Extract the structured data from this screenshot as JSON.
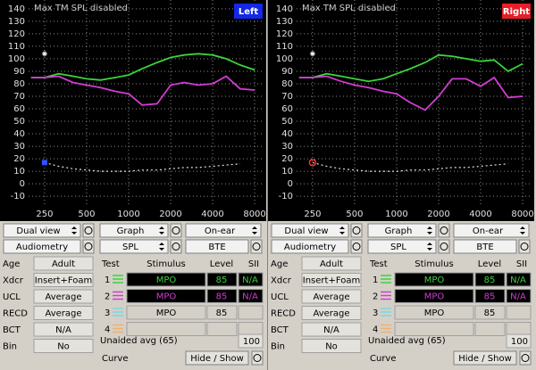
{
  "chart_data": [
    {
      "type": "line",
      "annotation": "Max TM SPL disabled",
      "ear_label": "Left",
      "ear_color": "#1428e6",
      "x": [
        200,
        250,
        315,
        400,
        500,
        630,
        800,
        1000,
        1250,
        1600,
        2000,
        2500,
        3150,
        4000,
        5000,
        6300,
        8000
      ],
      "xlim": [
        192,
        9400
      ],
      "ylim": [
        -17,
        147
      ],
      "log_x": true,
      "grid": true,
      "xticks": [
        250,
        500,
        1000,
        2000,
        4000,
        8000
      ],
      "yticks": [
        -10,
        0,
        10,
        20,
        30,
        40,
        50,
        60,
        70,
        80,
        90,
        100,
        110,
        120,
        130,
        140
      ],
      "series": [
        {
          "color": "#3cd23c",
          "line": "solid",
          "values": [
            85,
            85,
            88,
            86,
            84,
            83,
            85,
            87,
            92,
            97,
            101,
            103,
            104,
            103,
            100,
            95,
            91
          ]
        },
        {
          "color": "#d23cd2",
          "line": "solid",
          "values": [
            85,
            85,
            86,
            81,
            79,
            77,
            74,
            72,
            63,
            64,
            79,
            81,
            79,
            80,
            86,
            76,
            75
          ]
        },
        {
          "color": "#e0e0e0",
          "line": "dotted",
          "values": [
            null,
            17,
            14,
            12,
            11,
            10,
            10,
            10,
            11,
            11,
            12,
            13,
            13,
            14,
            15,
            16,
            null
          ]
        },
        {
          "color": "#ffffff",
          "line": "none",
          "marker": "star",
          "x": [
            250
          ],
          "values": [
            104
          ]
        },
        {
          "color": "#3050ff",
          "line": "none",
          "marker": "square",
          "x": [
            250
          ],
          "values": [
            17
          ]
        }
      ]
    },
    {
      "type": "line",
      "annotation": "Max TM SPL disabled",
      "ear_label": "Right",
      "ear_color": "#e61e28",
      "x": [
        200,
        250,
        315,
        400,
        500,
        630,
        800,
        1000,
        1250,
        1600,
        2000,
        2500,
        3150,
        4000,
        5000,
        6300,
        8000
      ],
      "xlim": [
        192,
        9400
      ],
      "ylim": [
        -17,
        147
      ],
      "log_x": true,
      "grid": true,
      "xticks": [
        250,
        500,
        1000,
        2000,
        4000,
        8000
      ],
      "yticks": [
        -10,
        0,
        10,
        20,
        30,
        40,
        50,
        60,
        70,
        80,
        90,
        100,
        110,
        120,
        130,
        140
      ],
      "series": [
        {
          "color": "#3cd23c",
          "line": "solid",
          "values": [
            85,
            85,
            88,
            86,
            84,
            82,
            84,
            88,
            92,
            97,
            103,
            102,
            100,
            98,
            99,
            90,
            96
          ]
        },
        {
          "color": "#d23cd2",
          "line": "solid",
          "values": [
            85,
            85,
            86,
            82,
            79,
            77,
            74,
            72,
            65,
            59,
            70,
            84,
            84,
            78,
            85,
            69,
            70
          ]
        },
        {
          "color": "#e0e0e0",
          "line": "dotted",
          "values": [
            null,
            17,
            14,
            12,
            11,
            10,
            10,
            10,
            11,
            11,
            12,
            13,
            13,
            14,
            15,
            16,
            null
          ]
        },
        {
          "color": "#ffffff",
          "line": "none",
          "marker": "star",
          "x": [
            250
          ],
          "values": [
            104
          ]
        },
        {
          "color": "#ff3030",
          "line": "none",
          "marker": "circle",
          "x": [
            250
          ],
          "values": [
            17
          ]
        }
      ]
    }
  ],
  "controls": [
    {
      "view": "Dual view",
      "display": "Graph",
      "position": "On-ear",
      "mode": "Audiometry",
      "scale": "SPL",
      "style": "BTE",
      "settings": [
        [
          "Age",
          "Adult"
        ],
        [
          "Xdcr",
          "Insert+Foam"
        ],
        [
          "UCL",
          "Average"
        ],
        [
          "RECD",
          "Average"
        ],
        [
          "BCT",
          "N/A"
        ],
        [
          "Bin",
          "No"
        ]
      ],
      "test_header": [
        "Test",
        "Stimulus",
        "Level",
        "SII"
      ],
      "tests": [
        {
          "num": 1,
          "color": "#3cd23c",
          "fill": "#000000",
          "text_color": "#3cd23c",
          "stimulus": "MPO",
          "level": 85,
          "sii": "N/A"
        },
        {
          "num": 2,
          "color": "#d23cd2",
          "fill": "#000000",
          "text_color": "#d23cd2",
          "stimulus": "MPO",
          "level": 85,
          "sii": "N/A"
        },
        {
          "num": 3,
          "color": "#7ad8e0",
          "fill": "#d4d0c8",
          "text_color": "#000000",
          "stimulus": "MPO",
          "level": 85
        },
        {
          "num": 4,
          "color": "#f0b070",
          "fill": "#d4d0c8"
        }
      ],
      "unaided_label": "Unaided avg (65)",
      "unaided_value": 100,
      "curve_label": "Curve",
      "curve_button": "Hide / Show"
    },
    {
      "view": "Dual view",
      "display": "Graph",
      "position": "On-ear",
      "mode": "Audiometry",
      "scale": "SPL",
      "style": "BTE",
      "settings": [
        [
          "Age",
          "Adult"
        ],
        [
          "Xdcr",
          "Insert+Foam"
        ],
        [
          "UCL",
          "Average"
        ],
        [
          "RECD",
          "Average"
        ],
        [
          "BCT",
          "N/A"
        ],
        [
          "Bin",
          "No"
        ]
      ],
      "test_header": [
        "Test",
        "Stimulus",
        "Level",
        "SII"
      ],
      "tests": [
        {
          "num": 1,
          "color": "#3cd23c",
          "fill": "#000000",
          "text_color": "#3cd23c",
          "stimulus": "MPO",
          "level": 85,
          "sii": "N/A"
        },
        {
          "num": 2,
          "color": "#d23cd2",
          "fill": "#000000",
          "text_color": "#d23cd2",
          "stimulus": "MPO",
          "level": 85,
          "sii": "N/A"
        },
        {
          "num": 3,
          "color": "#7ad8e0",
          "fill": "#d4d0c8",
          "text_color": "#000000",
          "stimulus": "MPO",
          "level": 85
        },
        {
          "num": 4,
          "color": "#f0b070",
          "fill": "#d4d0c8"
        }
      ],
      "unaided_label": "Unaided avg (65)",
      "unaided_value": 100,
      "curve_label": "Curve",
      "curve_button": "Hide / Show"
    }
  ]
}
